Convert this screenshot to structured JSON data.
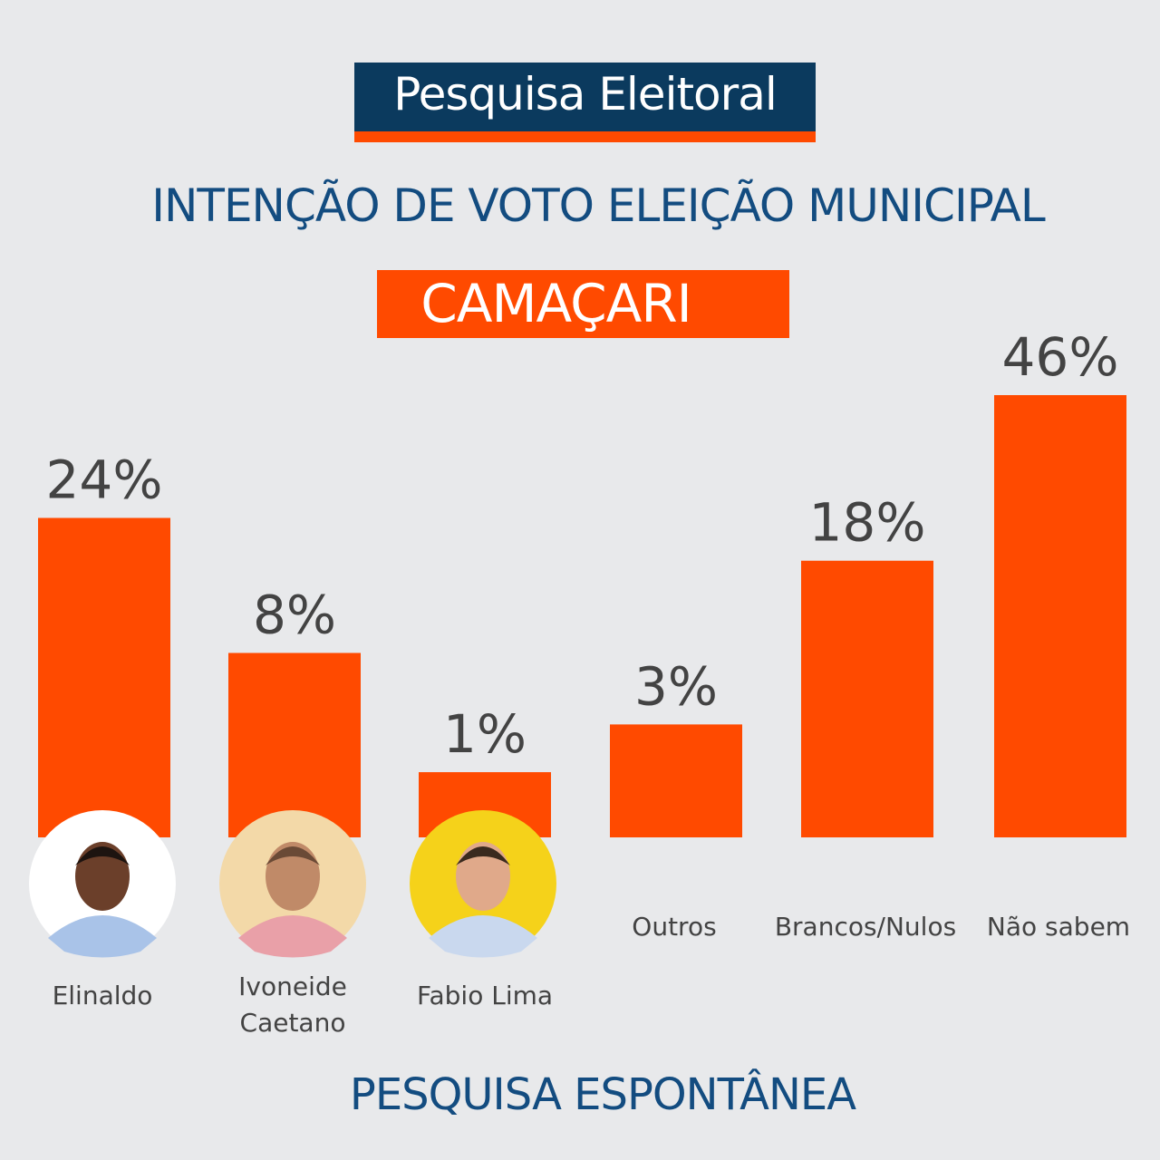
{
  "header": {
    "title": "Pesquisa Eleitoral",
    "subtitle": "INTENÇÃO DE VOTO ELEIÇÃO MUNICIPAL",
    "city": "CAMAÇARI",
    "footer": "PESQUISA ESPONTÂNEA"
  },
  "colors": {
    "navy": "#0b3a5e",
    "blue_text": "#134c80",
    "orange": "#ff4a00",
    "background": "#e8e9eb"
  },
  "chart_data": {
    "type": "bar",
    "title": "INTENÇÃO DE VOTO ELEIÇÃO MUNICIPAL",
    "categories": [
      [
        "Elinaldo"
      ],
      [
        "Ivoneide",
        "Caetano"
      ],
      [
        "Fabio Lima"
      ],
      [
        "Outros"
      ],
      [
        "Brancos/Nulos"
      ],
      [
        "Não sabem"
      ]
    ],
    "values": [
      24,
      8,
      1,
      3,
      18,
      46
    ],
    "value_labels": [
      "24%",
      "8%",
      "1%",
      "3%",
      "18%",
      "46%"
    ],
    "photos": [
      true,
      true,
      true,
      false,
      false,
      false
    ],
    "grid": false,
    "legend": "none"
  }
}
